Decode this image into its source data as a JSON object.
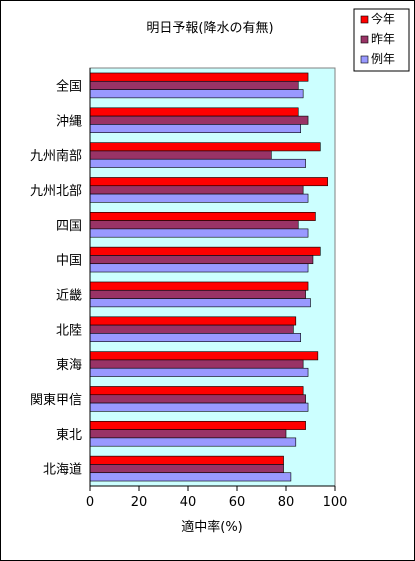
{
  "chart_data": {
    "type": "bar",
    "orientation": "horizontal",
    "title": "明日予報(降水の有無)",
    "xlabel": "適中率(%)",
    "ylabel": "",
    "xlim": [
      0,
      100
    ],
    "xticks": [
      "0",
      "20",
      "40",
      "60",
      "80",
      "100"
    ],
    "grid": false,
    "legend_position": "top-right",
    "plot_background": "#ccffff",
    "categories": [
      "全国",
      "沖縄",
      "九州南部",
      "九州北部",
      "四国",
      "中国",
      "近畿",
      "北陸",
      "東海",
      "関東甲信",
      "東北",
      "北海道"
    ],
    "series": [
      {
        "name": "今年",
        "color": "#ff0000",
        "values": [
          89,
          85,
          94,
          97,
          92,
          94,
          89,
          84,
          93,
          87,
          88,
          79
        ]
      },
      {
        "name": "昨年",
        "color": "#993366",
        "values": [
          85,
          89,
          74,
          87,
          85,
          91,
          88,
          83,
          87,
          88,
          80,
          79
        ]
      },
      {
        "name": "例年",
        "color": "#9999ff",
        "values": [
          87,
          86,
          88,
          89,
          89,
          89,
          90,
          86,
          89,
          89,
          84,
          82
        ]
      }
    ]
  }
}
